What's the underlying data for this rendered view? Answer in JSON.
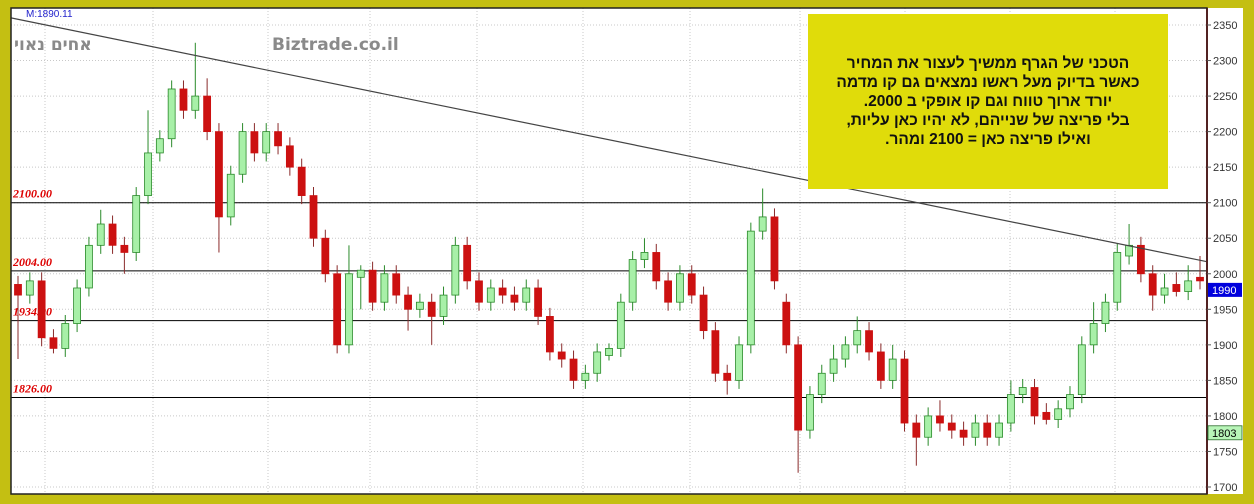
{
  "chart_data": {
    "type": "candlestick",
    "title": "",
    "ylim": [
      1700,
      2350
    ],
    "y_ticks": [
      1700,
      1750,
      1800,
      1850,
      1900,
      1950,
      2000,
      2050,
      2100,
      2150,
      2200,
      2250,
      2300,
      2350
    ],
    "y_axis_position": "right",
    "grid": true,
    "max_label": "M:1890.11",
    "watermark_left": "אחים נאוי",
    "watermark_right": "Biztrade.co.il",
    "horizontal_levels": [
      {
        "value": 2100,
        "label": "2100.00"
      },
      {
        "value": 2004,
        "label": "2004.00"
      },
      {
        "value": 1934,
        "label": "1934.00"
      },
      {
        "value": 1826,
        "label": "1826.00"
      }
    ],
    "trendline": {
      "start": 2360,
      "end": 2017
    },
    "last_price": {
      "value": 1990,
      "label": "1990",
      "color": "#0000dd"
    },
    "secondary_price": {
      "value": 1803,
      "label": "1803",
      "color": "#b8f5b8"
    },
    "colors": {
      "up": "#a8f0a8",
      "up_border": "#2a8a2a",
      "down": "#cc1111",
      "level_label": "#dd0000",
      "frame": "#c4bf12",
      "note_bg": "#e0dc0a"
    },
    "ohlc": [
      [
        1985,
        1997,
        1880,
        1970
      ],
      [
        1970,
        2002,
        1958,
        1990
      ],
      [
        1990,
        2002,
        1898,
        1910
      ],
      [
        1910,
        1922,
        1888,
        1895
      ],
      [
        1895,
        1942,
        1883,
        1930
      ],
      [
        1930,
        1992,
        1918,
        1980
      ],
      [
        1980,
        2052,
        1968,
        2040
      ],
      [
        2040,
        2090,
        2028,
        2070
      ],
      [
        2070,
        2082,
        2028,
        2040
      ],
      [
        2040,
        2052,
        2000,
        2030
      ],
      [
        2030,
        2122,
        2018,
        2110
      ],
      [
        2110,
        2230,
        2098,
        2170
      ],
      [
        2170,
        2202,
        2158,
        2190
      ],
      [
        2190,
        2272,
        2178,
        2260
      ],
      [
        2260,
        2272,
        2218,
        2230
      ],
      [
        2230,
        2325,
        2218,
        2250
      ],
      [
        2250,
        2275,
        2188,
        2200
      ],
      [
        2200,
        2212,
        2030,
        2080
      ],
      [
        2080,
        2152,
        2068,
        2140
      ],
      [
        2140,
        2212,
        2128,
        2200
      ],
      [
        2200,
        2212,
        2158,
        2170
      ],
      [
        2170,
        2212,
        2158,
        2200
      ],
      [
        2200,
        2212,
        2168,
        2180
      ],
      [
        2180,
        2192,
        2138,
        2150
      ],
      [
        2150,
        2162,
        2098,
        2110
      ],
      [
        2110,
        2122,
        2038,
        2050
      ],
      [
        2050,
        2062,
        1988,
        2000
      ],
      [
        2000,
        2012,
        1888,
        1900
      ],
      [
        1900,
        2040,
        1888,
        2000
      ],
      [
        1995,
        2012,
        1950,
        2005
      ],
      [
        2005,
        2017,
        1948,
        1960
      ],
      [
        1960,
        2012,
        1948,
        2000
      ],
      [
        2000,
        2012,
        1958,
        1970
      ],
      [
        1970,
        1982,
        1920,
        1950
      ],
      [
        1950,
        1972,
        1938,
        1960
      ],
      [
        1960,
        1972,
        1900,
        1940
      ],
      [
        1940,
        1982,
        1928,
        1970
      ],
      [
        1970,
        2052,
        1958,
        2040
      ],
      [
        2040,
        2052,
        1978,
        1990
      ],
      [
        1990,
        2002,
        1948,
        1960
      ],
      [
        1960,
        1992,
        1948,
        1980
      ],
      [
        1980,
        1992,
        1958,
        1970
      ],
      [
        1970,
        1982,
        1948,
        1960
      ],
      [
        1960,
        1992,
        1948,
        1980
      ],
      [
        1980,
        1992,
        1928,
        1940
      ],
      [
        1940,
        1952,
        1878,
        1890
      ],
      [
        1890,
        1902,
        1868,
        1880
      ],
      [
        1880,
        1892,
        1838,
        1850
      ],
      [
        1850,
        1872,
        1838,
        1860
      ],
      [
        1860,
        1902,
        1848,
        1890
      ],
      [
        1885,
        1902,
        1878,
        1895
      ],
      [
        1895,
        1972,
        1883,
        1960
      ],
      [
        1960,
        2032,
        1948,
        2020
      ],
      [
        2020,
        2050,
        2008,
        2030
      ],
      [
        2030,
        2042,
        1978,
        1990
      ],
      [
        1990,
        2002,
        1948,
        1960
      ],
      [
        1960,
        2012,
        1948,
        2000
      ],
      [
        2000,
        2012,
        1958,
        1970
      ],
      [
        1970,
        1982,
        1908,
        1920
      ],
      [
        1920,
        1932,
        1848,
        1860
      ],
      [
        1860,
        1872,
        1830,
        1850
      ],
      [
        1850,
        1912,
        1838,
        1900
      ],
      [
        1900,
        2072,
        1888,
        2060
      ],
      [
        2060,
        2120,
        2048,
        2080
      ],
      [
        2080,
        2092,
        1978,
        1990
      ],
      [
        1960,
        1972,
        1888,
        1900
      ],
      [
        1900,
        1912,
        1720,
        1780
      ],
      [
        1780,
        1842,
        1768,
        1830
      ],
      [
        1830,
        1872,
        1818,
        1860
      ],
      [
        1860,
        1900,
        1848,
        1880
      ],
      [
        1880,
        1912,
        1868,
        1900
      ],
      [
        1900,
        1940,
        1888,
        1920
      ],
      [
        1920,
        1932,
        1878,
        1890
      ],
      [
        1890,
        1902,
        1838,
        1850
      ],
      [
        1850,
        1900,
        1838,
        1880
      ],
      [
        1880,
        1892,
        1778,
        1790
      ],
      [
        1790,
        1802,
        1730,
        1770
      ],
      [
        1770,
        1812,
        1758,
        1800
      ],
      [
        1800,
        1822,
        1778,
        1790
      ],
      [
        1790,
        1802,
        1768,
        1780
      ],
      [
        1780,
        1792,
        1758,
        1770
      ],
      [
        1770,
        1802,
        1758,
        1790
      ],
      [
        1790,
        1802,
        1758,
        1770
      ],
      [
        1770,
        1802,
        1758,
        1790
      ],
      [
        1790,
        1850,
        1778,
        1830
      ],
      [
        1830,
        1852,
        1818,
        1840
      ],
      [
        1840,
        1852,
        1788,
        1800
      ],
      [
        1805,
        1818,
        1788,
        1795
      ],
      [
        1795,
        1822,
        1783,
        1810
      ],
      [
        1810,
        1842,
        1798,
        1830
      ],
      [
        1830,
        1912,
        1818,
        1900
      ],
      [
        1900,
        1960,
        1888,
        1930
      ],
      [
        1930,
        1972,
        1918,
        1960
      ],
      [
        1960,
        2042,
        1948,
        2030
      ],
      [
        2025,
        2070,
        2013,
        2040
      ],
      [
        2040,
        2052,
        1988,
        2000
      ],
      [
        2000,
        2012,
        1948,
        1970
      ],
      [
        1970,
        2000,
        1958,
        1980
      ],
      [
        1985,
        2002,
        1968,
        1975
      ],
      [
        1975,
        2012,
        1963,
        1990
      ],
      [
        1995,
        2025,
        1978,
        1990
      ]
    ]
  },
  "annotation": {
    "text": "הטכני של הגרף ממשיך לעצור את המחיר\nכאשר בדיוק מעל ראשו נמצאים גם קו מדמה\nיורד ארוך טווח וגם קו אופקי ב 2000.\nבלי פריצה של שנייהם, לא יהיו כאן עליות,\nואילו פריצה כאן = 2100 ומהר."
  }
}
